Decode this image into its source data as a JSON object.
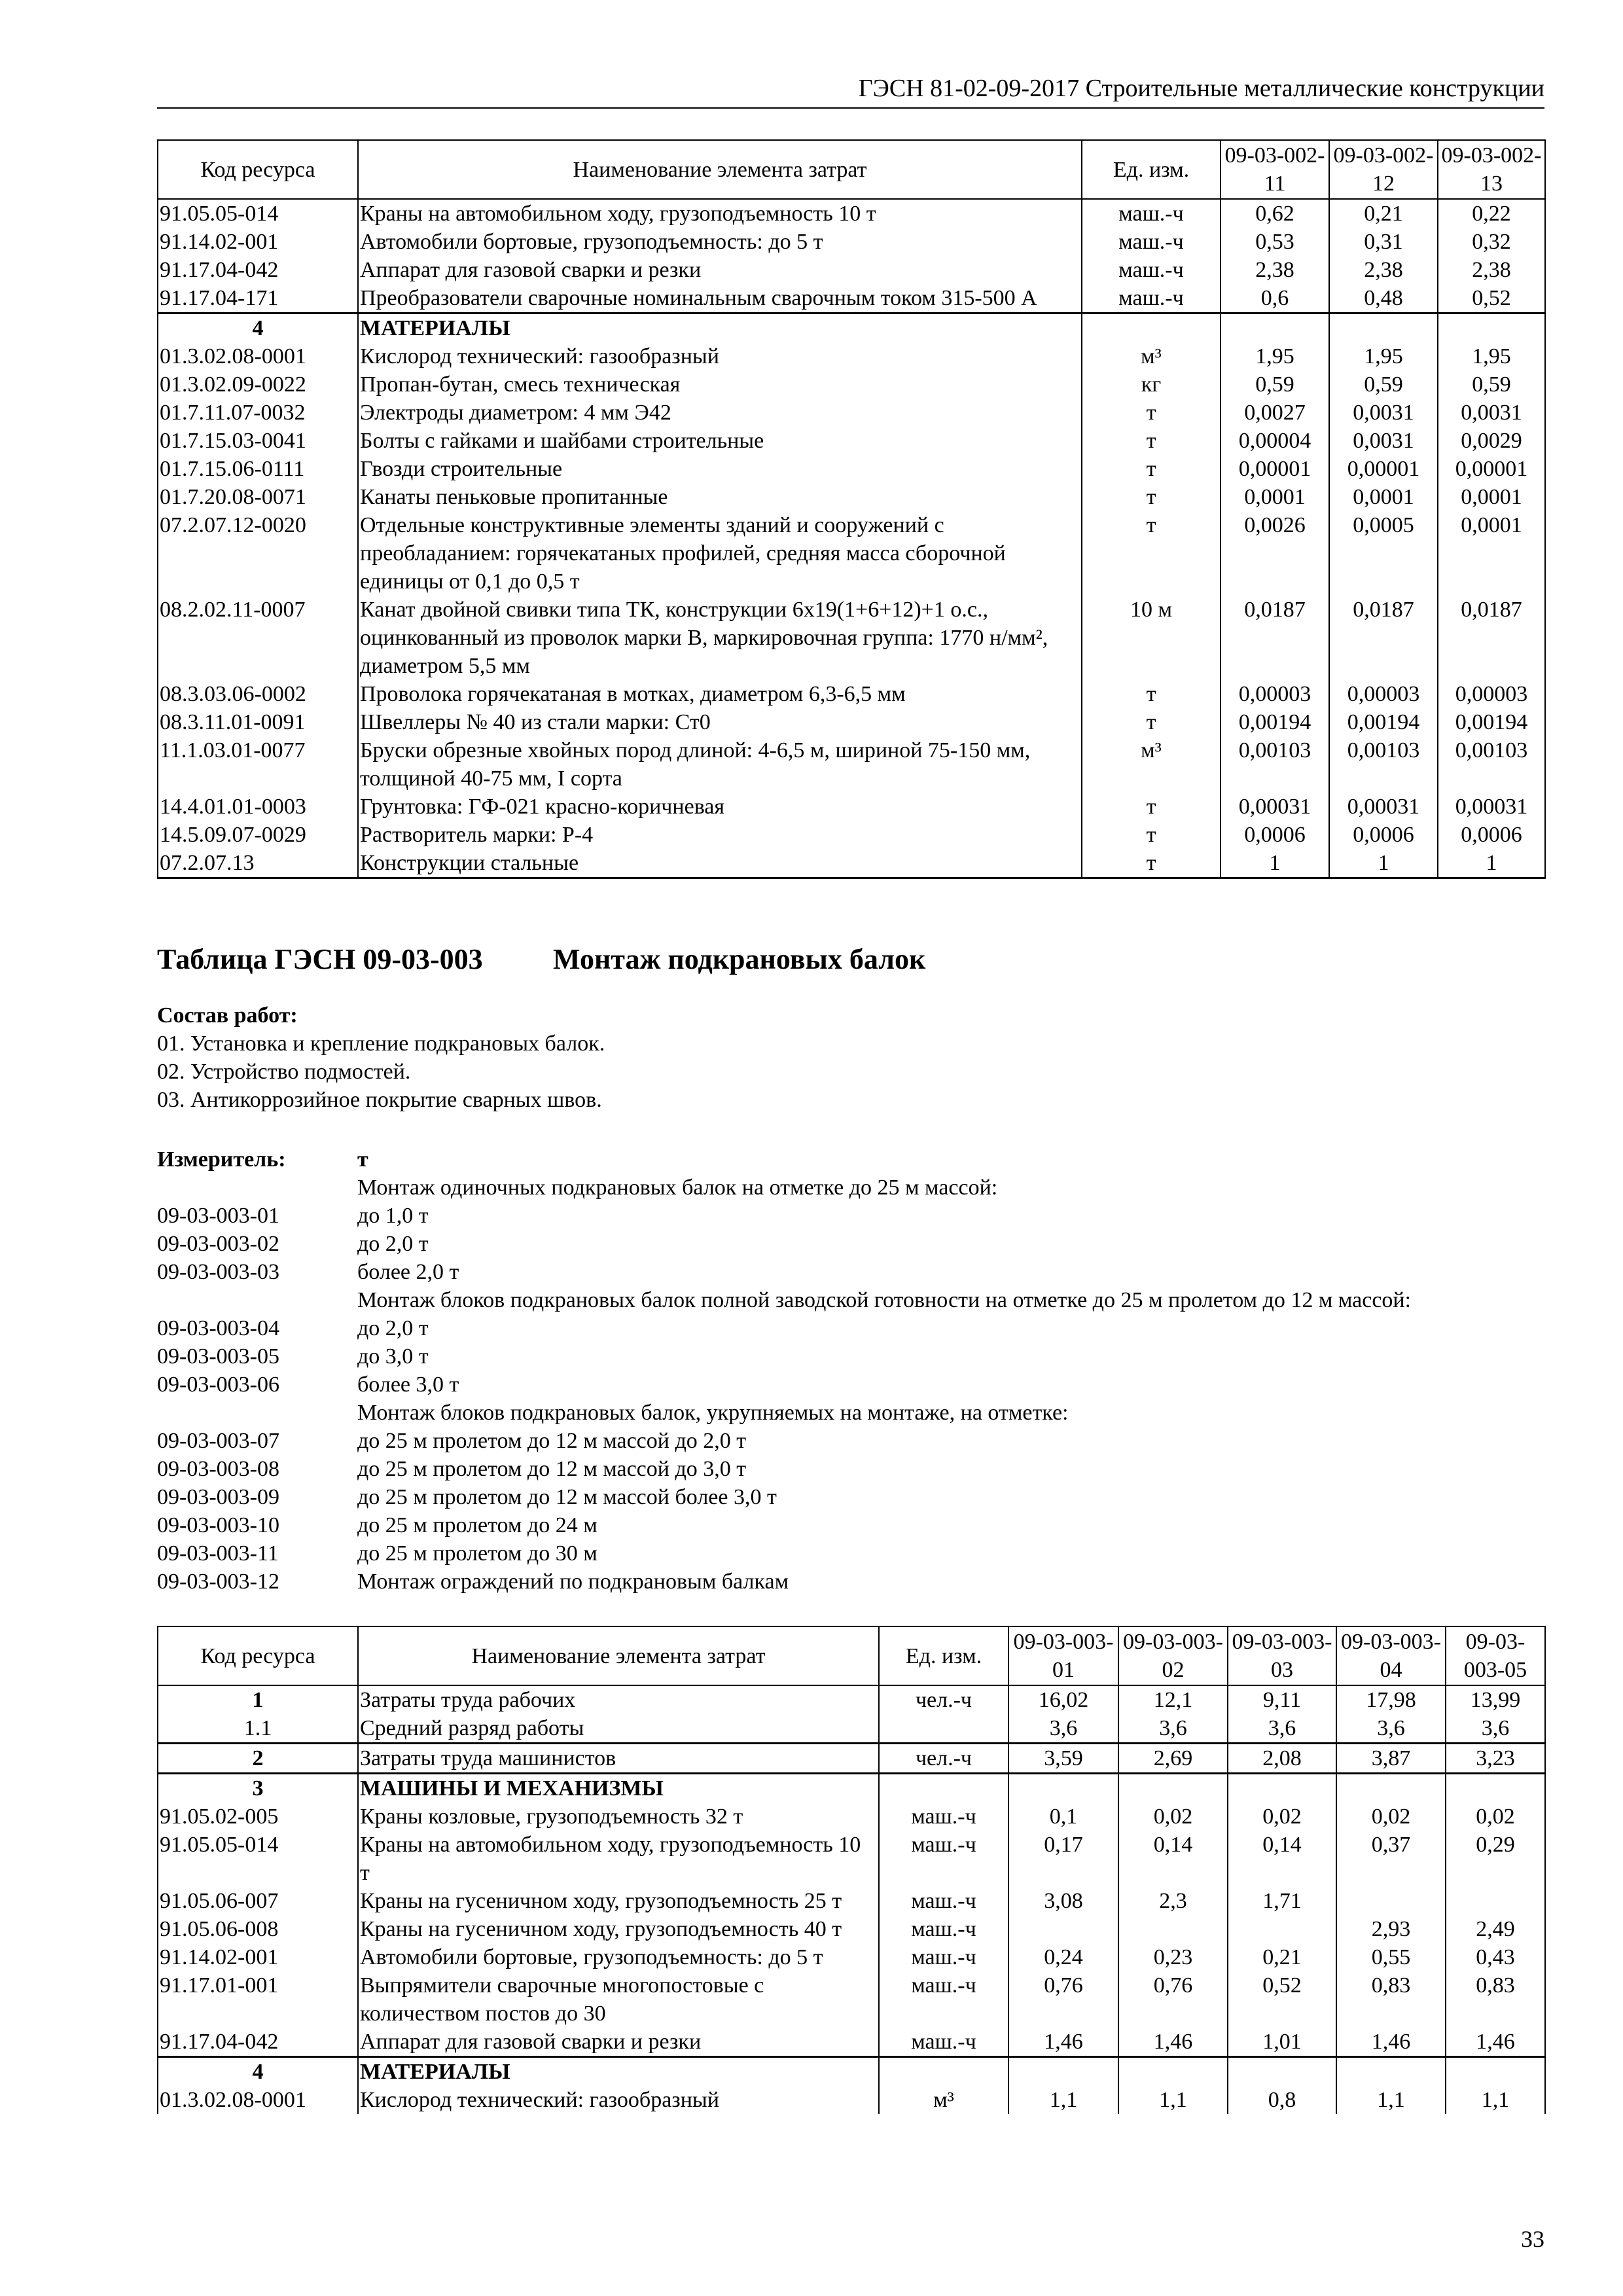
{
  "header": {
    "title": "ГЭСН 81-02-09-2017 Строительные металлические конструкции"
  },
  "table1": {
    "headers": {
      "code": "Код ресурса",
      "name": "Наименование элемента затрат",
      "unit": "Ед. изм.",
      "cols": [
        "09-03-002-11",
        "09-03-002-12",
        "09-03-002-13"
      ]
    },
    "rows": [
      {
        "code": "91.05.05-014",
        "name": "Краны на автомобильном ходу, грузоподъемность 10 т",
        "unit": "маш.-ч",
        "values": [
          "0,62",
          "0,21",
          "0,22"
        ]
      },
      {
        "code": "91.14.02-001",
        "name": "Автомобили бортовые, грузоподъемность: до 5 т",
        "unit": "маш.-ч",
        "values": [
          "0,53",
          "0,31",
          "0,32"
        ]
      },
      {
        "code": "91.17.04-042",
        "name": "Аппарат для газовой сварки и резки",
        "unit": "маш.-ч",
        "values": [
          "2,38",
          "2,38",
          "2,38"
        ]
      },
      {
        "code": "91.17.04-171",
        "name": "Преобразователи сварочные номинальным сварочным током 315-500 А",
        "unit": "маш.-ч",
        "values": [
          "0,6",
          "0,48",
          "0,52"
        ]
      },
      {
        "code": "4",
        "name": "МАТЕРИАЛЫ",
        "unit": "",
        "values": [
          "",
          "",
          ""
        ],
        "section": true,
        "group_start": true
      },
      {
        "code": "01.3.02.08-0001",
        "name": "Кислород технический: газообразный",
        "unit": "м³",
        "values": [
          "1,95",
          "1,95",
          "1,95"
        ]
      },
      {
        "code": "01.3.02.09-0022",
        "name": "Пропан-бутан, смесь техническая",
        "unit": "кг",
        "values": [
          "0,59",
          "0,59",
          "0,59"
        ]
      },
      {
        "code": "01.7.11.07-0032",
        "name": "Электроды диаметром: 4 мм Э42",
        "unit": "т",
        "values": [
          "0,0027",
          "0,0031",
          "0,0031"
        ]
      },
      {
        "code": "01.7.15.03-0041",
        "name": "Болты с гайками и шайбами строительные",
        "unit": "т",
        "values": [
          "0,00004",
          "0,0031",
          "0,0029"
        ]
      },
      {
        "code": "01.7.15.06-0111",
        "name": "Гвозди строительные",
        "unit": "т",
        "values": [
          "0,00001",
          "0,00001",
          "0,00001"
        ]
      },
      {
        "code": "01.7.20.08-0071",
        "name": "Канаты пеньковые пропитанные",
        "unit": "т",
        "values": [
          "0,0001",
          "0,0001",
          "0,0001"
        ]
      },
      {
        "code": "07.2.07.12-0020",
        "name": "Отдельные конструктивные элементы зданий и сооружений с преобладанием: горячекатаных профилей, средняя масса сборочной единицы от 0,1 до 0,5 т",
        "unit": "т",
        "values": [
          "0,0026",
          "0,0005",
          "0,0001"
        ]
      },
      {
        "code": "08.2.02.11-0007",
        "name": "Канат двойной свивки типа ТК, конструкции 6х19(1+6+12)+1 о.с., оцинкованный из проволок марки В, маркировочная группа: 1770 н/мм², диаметром 5,5 мм",
        "unit": "10 м",
        "values": [
          "0,0187",
          "0,0187",
          "0,0187"
        ]
      },
      {
        "code": "08.3.03.06-0002",
        "name": "Проволока горячекатаная в мотках, диаметром 6,3-6,5 мм",
        "unit": "т",
        "values": [
          "0,00003",
          "0,00003",
          "0,00003"
        ]
      },
      {
        "code": "08.3.11.01-0091",
        "name": "Швеллеры № 40 из стали марки: Ст0",
        "unit": "т",
        "values": [
          "0,00194",
          "0,00194",
          "0,00194"
        ]
      },
      {
        "code": "11.1.03.01-0077",
        "name": "Бруски обрезные хвойных пород длиной: 4-6,5 м, шириной 75-150 мм, толщиной 40-75 мм, I сорта",
        "unit": "м³",
        "values": [
          "0,00103",
          "0,00103",
          "0,00103"
        ]
      },
      {
        "code": "14.4.01.01-0003",
        "name": "Грунтовка: ГФ-021 красно-коричневая",
        "unit": "т",
        "values": [
          "0,00031",
          "0,00031",
          "0,00031"
        ]
      },
      {
        "code": "14.5.09.07-0029",
        "name": "Растворитель марки: Р-4",
        "unit": "т",
        "values": [
          "0,0006",
          "0,0006",
          "0,0006"
        ]
      },
      {
        "code": "07.2.07.13",
        "name": "Конструкции стальные",
        "unit": "т",
        "values": [
          "1",
          "1",
          "1"
        ]
      }
    ]
  },
  "section": {
    "table_label": "Таблица ГЭСН 09-03-003",
    "table_title": "Монтаж подкрановых балок",
    "works_label": "Состав работ:",
    "works": [
      "01. Установка и крепление подкрановых балок.",
      "02. Устройство подмостей.",
      "03. Антикоррозийное покрытие сварных швов."
    ],
    "measure_label": "Измеритель:",
    "measure_unit": "т",
    "measure_items": [
      {
        "code": "",
        "text": "Монтаж одиночных подкрановых балок на отметке до 25 м массой:"
      },
      {
        "code": "09-03-003-01",
        "text": "до 1,0 т"
      },
      {
        "code": "09-03-003-02",
        "text": "до 2,0 т"
      },
      {
        "code": "09-03-003-03",
        "text": "более 2,0 т"
      },
      {
        "code": "",
        "text": "Монтаж блоков подкрановых балок полной заводской готовности на отметке до 25 м пролетом до 12 м массой:"
      },
      {
        "code": "09-03-003-04",
        "text": "до 2,0 т"
      },
      {
        "code": "09-03-003-05",
        "text": "до 3,0 т"
      },
      {
        "code": "09-03-003-06",
        "text": "более 3,0 т"
      },
      {
        "code": "",
        "text": "Монтаж блоков подкрановых балок, укрупняемых на монтаже, на отметке:"
      },
      {
        "code": "09-03-003-07",
        "text": "до 25 м пролетом до 12 м массой до 2,0 т"
      },
      {
        "code": "09-03-003-08",
        "text": "до 25 м пролетом до 12 м массой до 3,0 т"
      },
      {
        "code": "09-03-003-09",
        "text": "до 25 м пролетом до 12 м массой более 3,0 т"
      },
      {
        "code": "09-03-003-10",
        "text": "до 25 м пролетом до 24 м"
      },
      {
        "code": "09-03-003-11",
        "text": "до 25 м пролетом до 30 м"
      },
      {
        "code": "09-03-003-12",
        "text": "Монтаж ограждений по подкрановым балкам"
      }
    ]
  },
  "table2": {
    "headers": {
      "code": "Код ресурса",
      "name": "Наименование элемента затрат",
      "unit": "Ед. изм.",
      "cols": [
        "09-03-003-01",
        "09-03-003-02",
        "09-03-003-03",
        "09-03-003-04",
        "09-03-003-05"
      ]
    },
    "rows": [
      {
        "code": "1",
        "name": "Затраты труда рабочих",
        "unit": "чел.-ч",
        "values": [
          "16,02",
          "12,1",
          "9,11",
          "17,98",
          "13,99"
        ],
        "bold_code": true
      },
      {
        "code": "1.1",
        "name": "Средний разряд работы",
        "unit": "",
        "values": [
          "3,6",
          "3,6",
          "3,6",
          "3,6",
          "3,6"
        ]
      },
      {
        "code": "2",
        "name": "Затраты труда машинистов",
        "unit": "чел.-ч",
        "values": [
          "3,59",
          "2,69",
          "2,08",
          "3,87",
          "3,23"
        ],
        "bold_code": true,
        "group_start": true
      },
      {
        "code": "3",
        "name": "МАШИНЫ И МЕХАНИЗМЫ",
        "unit": "",
        "values": [
          "",
          "",
          "",
          "",
          ""
        ],
        "section": true,
        "group_start": true
      },
      {
        "code": "91.05.02-005",
        "name": "Краны козловые, грузоподъемность 32 т",
        "unit": "маш.-ч",
        "values": [
          "0,1",
          "0,02",
          "0,02",
          "0,02",
          "0,02"
        ]
      },
      {
        "code": "91.05.05-014",
        "name": "Краны на автомобильном ходу, грузоподъемность 10 т",
        "unit": "маш.-ч",
        "values": [
          "0,17",
          "0,14",
          "0,14",
          "0,37",
          "0,29"
        ]
      },
      {
        "code": "91.05.06-007",
        "name": "Краны на гусеничном ходу, грузоподъемность 25 т",
        "unit": "маш.-ч",
        "values": [
          "3,08",
          "2,3",
          "1,71",
          "",
          ""
        ]
      },
      {
        "code": "91.05.06-008",
        "name": "Краны на гусеничном ходу, грузоподъемность 40 т",
        "unit": "маш.-ч",
        "values": [
          "",
          "",
          "",
          "2,93",
          "2,49"
        ]
      },
      {
        "code": "91.14.02-001",
        "name": "Автомобили бортовые, грузоподъемность: до 5 т",
        "unit": "маш.-ч",
        "values": [
          "0,24",
          "0,23",
          "0,21",
          "0,55",
          "0,43"
        ]
      },
      {
        "code": "91.17.01-001",
        "name": "Выпрямители сварочные многопостовые с количеством постов до 30",
        "unit": "маш.-ч",
        "values": [
          "0,76",
          "0,76",
          "0,52",
          "0,83",
          "0,83"
        ]
      },
      {
        "code": "91.17.04-042",
        "name": "Аппарат для газовой сварки и резки",
        "unit": "маш.-ч",
        "values": [
          "1,46",
          "1,46",
          "1,01",
          "1,46",
          "1,46"
        ]
      },
      {
        "code": "4",
        "name": "МАТЕРИАЛЫ",
        "unit": "",
        "values": [
          "",
          "",
          "",
          "",
          ""
        ],
        "section": true,
        "group_start": true
      },
      {
        "code": "01.3.02.08-0001",
        "name": "Кислород технический: газообразный",
        "unit": "м³",
        "values": [
          "1,1",
          "1,1",
          "0,8",
          "1,1",
          "1,1"
        ]
      }
    ]
  },
  "page_number": "33"
}
